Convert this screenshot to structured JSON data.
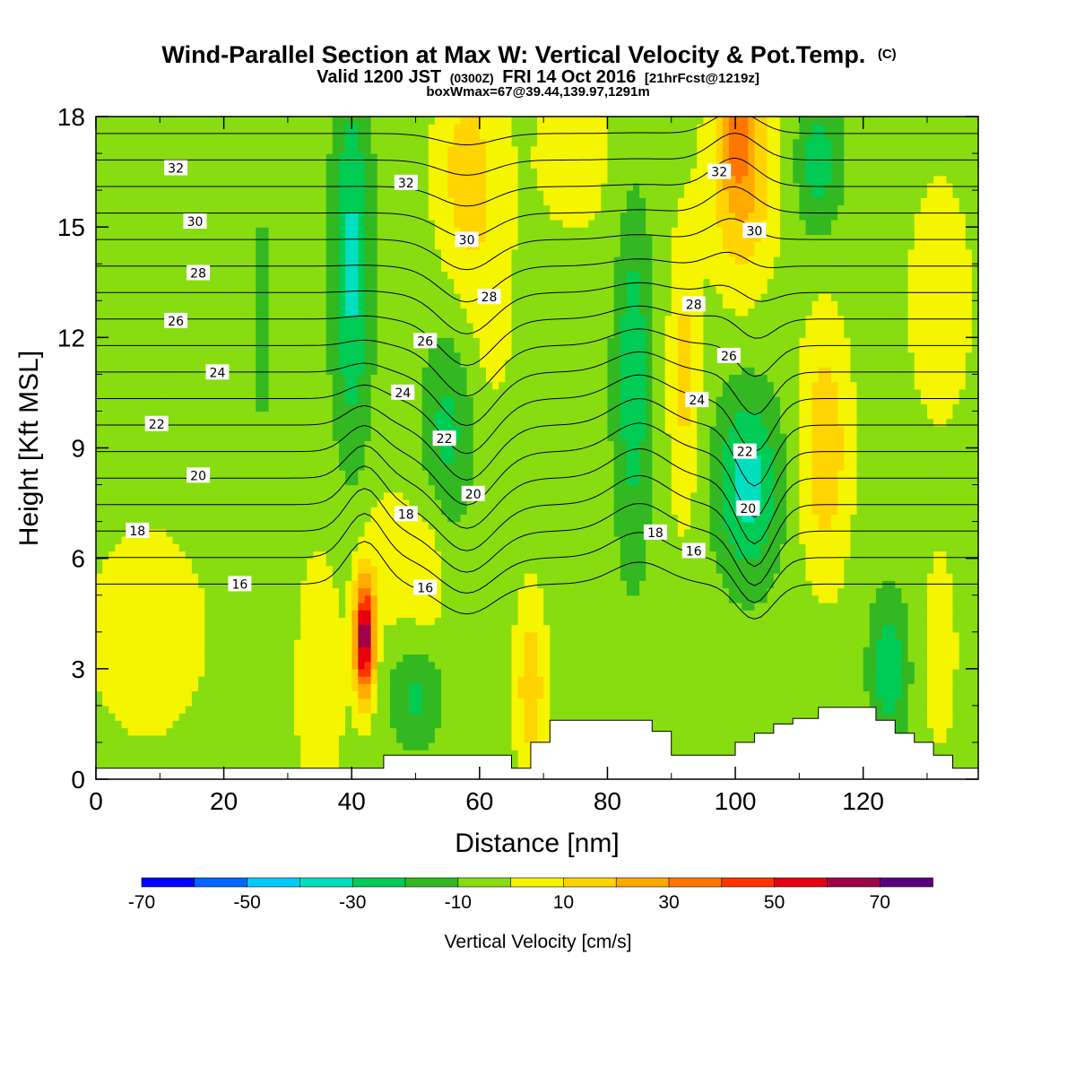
{
  "chart_data": {
    "type": "heatmap",
    "title": "Wind-Parallel Section at Max W: Vertical Velocity & Pot.Temp.",
    "title_mark": "(C)",
    "subtitle_parts": [
      "Valid 1200 JST",
      "(0300Z)",
      "FRI 14 Oct 2016",
      "[21hrFcst@1219z]"
    ],
    "subtitle2": "boxWmax=67@39.44,139.97,1291m",
    "xlabel": "Distance [nm]",
    "ylabel": "Height [Kft MSL]",
    "xlim": [
      0,
      138
    ],
    "ylim": [
      0,
      18
    ],
    "xticks": [
      "0",
      "20",
      "40",
      "60",
      "80",
      "100",
      "120"
    ],
    "yticks": [
      "0",
      "3",
      "6",
      "9",
      "12",
      "15",
      "18"
    ],
    "colorbar": {
      "label": "Vertical Velocity [cm/s]",
      "range": [
        -70,
        80
      ],
      "tick_labels": [
        "-70",
        "-50",
        "-30",
        "-10",
        "10",
        "30",
        "50",
        "70"
      ],
      "colors": [
        "#0000ff",
        "#0066ff",
        "#00ccff",
        "#00e0c0",
        "#00cc55",
        "#33b822",
        "#88dd11",
        "#f5f500",
        "#ffd400",
        "#ffaa00",
        "#ff7700",
        "#ff3300",
        "#e60010",
        "#a0004a",
        "#5c0080"
      ]
    },
    "background_value": -5,
    "w_features": [
      {
        "x": 42,
        "y": 3.8,
        "sx": 1.6,
        "sy": 1.6,
        "w": 72
      },
      {
        "x": 35,
        "y": 2.5,
        "sx": 4,
        "sy": 4,
        "w": 12
      },
      {
        "x": 46,
        "y": 6,
        "sx": 5,
        "sy": 2,
        "w": 12
      },
      {
        "x": 40,
        "y": 14,
        "sx": 3,
        "sy": 5,
        "w": -28
      },
      {
        "x": 26,
        "y": 12.5,
        "sx": 1.3,
        "sy": 2.5,
        "w": -16
      },
      {
        "x": 55,
        "y": 9.5,
        "sx": 4,
        "sy": 2.5,
        "w": -18
      },
      {
        "x": 50,
        "y": 2.3,
        "sx": 4,
        "sy": 1.4,
        "w": -17
      },
      {
        "x": 58,
        "y": 16.5,
        "sx": 5,
        "sy": 3,
        "w": 20
      },
      {
        "x": 62,
        "y": 12.5,
        "sx": 4,
        "sy": 3,
        "w": 8
      },
      {
        "x": 75,
        "y": 17,
        "sx": 9,
        "sy": 3,
        "w": 8
      },
      {
        "x": 68,
        "y": 2.5,
        "sx": 2.5,
        "sy": 2.5,
        "w": 22
      },
      {
        "x": 84,
        "y": 11,
        "sx": 3,
        "sy": 5,
        "w": -22
      },
      {
        "x": 92,
        "y": 11,
        "sx": 2.5,
        "sy": 4,
        "w": 18
      },
      {
        "x": 101,
        "y": 16.5,
        "sx": 5,
        "sy": 3,
        "w": 30
      },
      {
        "x": 100,
        "y": 17.8,
        "sx": 2.2,
        "sy": 1.5,
        "w": 20
      },
      {
        "x": 102,
        "y": 8,
        "sx": 5,
        "sy": 2.5,
        "w": -30
      },
      {
        "x": 113,
        "y": 16.8,
        "sx": 3.5,
        "sy": 2,
        "w": -20
      },
      {
        "x": 114,
        "y": 9,
        "sx": 4,
        "sy": 3.5,
        "w": 23
      },
      {
        "x": 124,
        "y": 3,
        "sx": 3,
        "sy": 2,
        "w": -22
      },
      {
        "x": 132,
        "y": 3.5,
        "sx": 2.5,
        "sy": 2.5,
        "w": 14
      },
      {
        "x": 132,
        "y": 13,
        "sx": 6,
        "sy": 4,
        "w": 10
      },
      {
        "x": 8,
        "y": 4,
        "sx": 10,
        "sy": 3,
        "w": 12
      },
      {
        "x": 52,
        "y": 5.5,
        "sx": 3,
        "sy": 2,
        "w": 10
      }
    ],
    "isentropes": {
      "levels": [
        16,
        17,
        18,
        19,
        20,
        21,
        22,
        23,
        24,
        25,
        26,
        27,
        28,
        29,
        30,
        31,
        32,
        33,
        34
      ],
      "base_height": 5.3,
      "spacing": 0.72,
      "perturbations": [
        {
          "x": 42,
          "y": 6,
          "sx": 4,
          "sy": 4,
          "a": 1.2
        },
        {
          "x": 58,
          "y": 10,
          "sx": 6,
          "sy": 6,
          "a": -1.5
        },
        {
          "x": 85,
          "y": 8,
          "sx": 6,
          "sy": 5,
          "a": 0.8
        },
        {
          "x": 103,
          "y": 8.5,
          "sx": 4,
          "sy": 4,
          "a": -1.8
        },
        {
          "x": 100,
          "y": 16,
          "sx": 5,
          "sy": 3,
          "a": 0.8
        }
      ],
      "labels": [
        {
          "level": 16,
          "x": 22.5,
          "y": 5.3
        },
        {
          "level": 16,
          "x": 51.5,
          "y": 5.2
        },
        {
          "level": 16,
          "x": 93.5,
          "y": 6.2
        },
        {
          "level": 18,
          "x": 6.5,
          "y": 6.75
        },
        {
          "level": 18,
          "x": 48.5,
          "y": 7.2
        },
        {
          "level": 18,
          "x": 87.5,
          "y": 6.7
        },
        {
          "level": 20,
          "x": 16,
          "y": 8.25
        },
        {
          "level": 20,
          "x": 59,
          "y": 7.75
        },
        {
          "level": 20,
          "x": 102,
          "y": 7.35
        },
        {
          "level": 22,
          "x": 9.5,
          "y": 9.65
        },
        {
          "level": 22,
          "x": 54.5,
          "y": 9.25
        },
        {
          "level": 22,
          "x": 101.5,
          "y": 8.9
        },
        {
          "level": 24,
          "x": 19,
          "y": 11.05
        },
        {
          "level": 24,
          "x": 48,
          "y": 10.5
        },
        {
          "level": 24,
          "x": 94,
          "y": 10.3
        },
        {
          "level": 26,
          "x": 12.5,
          "y": 12.45
        },
        {
          "level": 26,
          "x": 51.5,
          "y": 11.9
        },
        {
          "level": 26,
          "x": 99,
          "y": 11.5
        },
        {
          "level": 28,
          "x": 16,
          "y": 13.75
        },
        {
          "level": 28,
          "x": 61.5,
          "y": 13.1
        },
        {
          "level": 28,
          "x": 93.5,
          "y": 12.9
        },
        {
          "level": 30,
          "x": 15.5,
          "y": 15.15
        },
        {
          "level": 30,
          "x": 58,
          "y": 14.65
        },
        {
          "level": 30,
          "x": 103,
          "y": 14.9
        },
        {
          "level": 32,
          "x": 12.5,
          "y": 16.6
        },
        {
          "level": 32,
          "x": 48.5,
          "y": 16.2
        },
        {
          "level": 32,
          "x": 97.5,
          "y": 16.5
        }
      ]
    },
    "terrain": [
      [
        0,
        0.3
      ],
      [
        45,
        0.3
      ],
      [
        45,
        0.65
      ],
      [
        65,
        0.65
      ],
      [
        65,
        0.3
      ],
      [
        68,
        0.3
      ],
      [
        68,
        1.0
      ],
      [
        71,
        1.0
      ],
      [
        71,
        1.6
      ],
      [
        87,
        1.6
      ],
      [
        87,
        1.3
      ],
      [
        90,
        1.3
      ],
      [
        90,
        0.65
      ],
      [
        100,
        0.65
      ],
      [
        100,
        1.0
      ],
      [
        103,
        1.0
      ],
      [
        103,
        1.25
      ],
      [
        106,
        1.25
      ],
      [
        106,
        1.5
      ],
      [
        109,
        1.5
      ],
      [
        109,
        1.65
      ],
      [
        113,
        1.65
      ],
      [
        113,
        1.95
      ],
      [
        122,
        1.95
      ],
      [
        122,
        1.6
      ],
      [
        125,
        1.6
      ],
      [
        125,
        1.25
      ],
      [
        128,
        1.25
      ],
      [
        128,
        1.0
      ],
      [
        131,
        1.0
      ],
      [
        131,
        0.65
      ],
      [
        134,
        0.65
      ],
      [
        134,
        0.3
      ],
      [
        138,
        0.3
      ],
      [
        138,
        0
      ]
    ]
  }
}
